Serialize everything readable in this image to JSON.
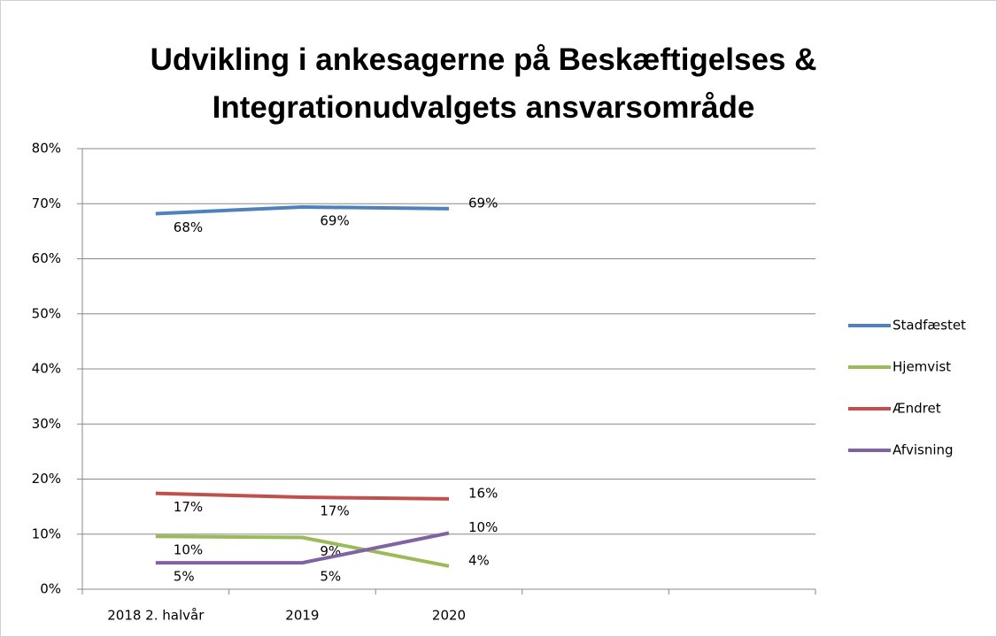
{
  "chart_data": {
    "type": "line",
    "title": "Udvikling i ankesagerne på Beskæftigelses & Integrationudvalgets ansvarsområde",
    "categories": [
      "2018 2. halvår",
      "2019",
      "2020",
      null,
      null
    ],
    "series": [
      {
        "name": "Stadfæstet",
        "color": "#4f81bd",
        "values": [
          68.2,
          69.4,
          69.1,
          null,
          null
        ],
        "value_labels": [
          "68%",
          "69%",
          "69%",
          null,
          null
        ]
      },
      {
        "name": "Hjemvist",
        "color": "#9bbb59",
        "values": [
          9.6,
          9.4,
          4.2,
          null,
          null
        ],
        "value_labels": [
          "10%",
          "9%",
          "4%",
          null,
          null
        ]
      },
      {
        "name": "Ændret",
        "color": "#c0504d",
        "values": [
          17.4,
          16.7,
          16.4,
          null,
          null
        ],
        "value_labels": [
          "17%",
          "17%",
          "16%",
          null,
          null
        ]
      },
      {
        "name": "Afvisning",
        "color": "#8064a2",
        "values": [
          4.8,
          4.8,
          10.2,
          null,
          null
        ],
        "value_labels": [
          "5%",
          "5%",
          "10%",
          null,
          null
        ]
      }
    ],
    "ylim": [
      0,
      80
    ],
    "yticks": [
      {
        "value": 0,
        "label": "0%"
      },
      {
        "value": 10,
        "label": "10%"
      },
      {
        "value": 20,
        "label": "20%"
      },
      {
        "value": 30,
        "label": "30%"
      },
      {
        "value": 40,
        "label": "40%"
      },
      {
        "value": 50,
        "label": "50%"
      },
      {
        "value": 60,
        "label": "60%"
      },
      {
        "value": 70,
        "label": "70%"
      },
      {
        "value": 80,
        "label": "80%"
      }
    ],
    "grid": true,
    "legend": "right"
  }
}
